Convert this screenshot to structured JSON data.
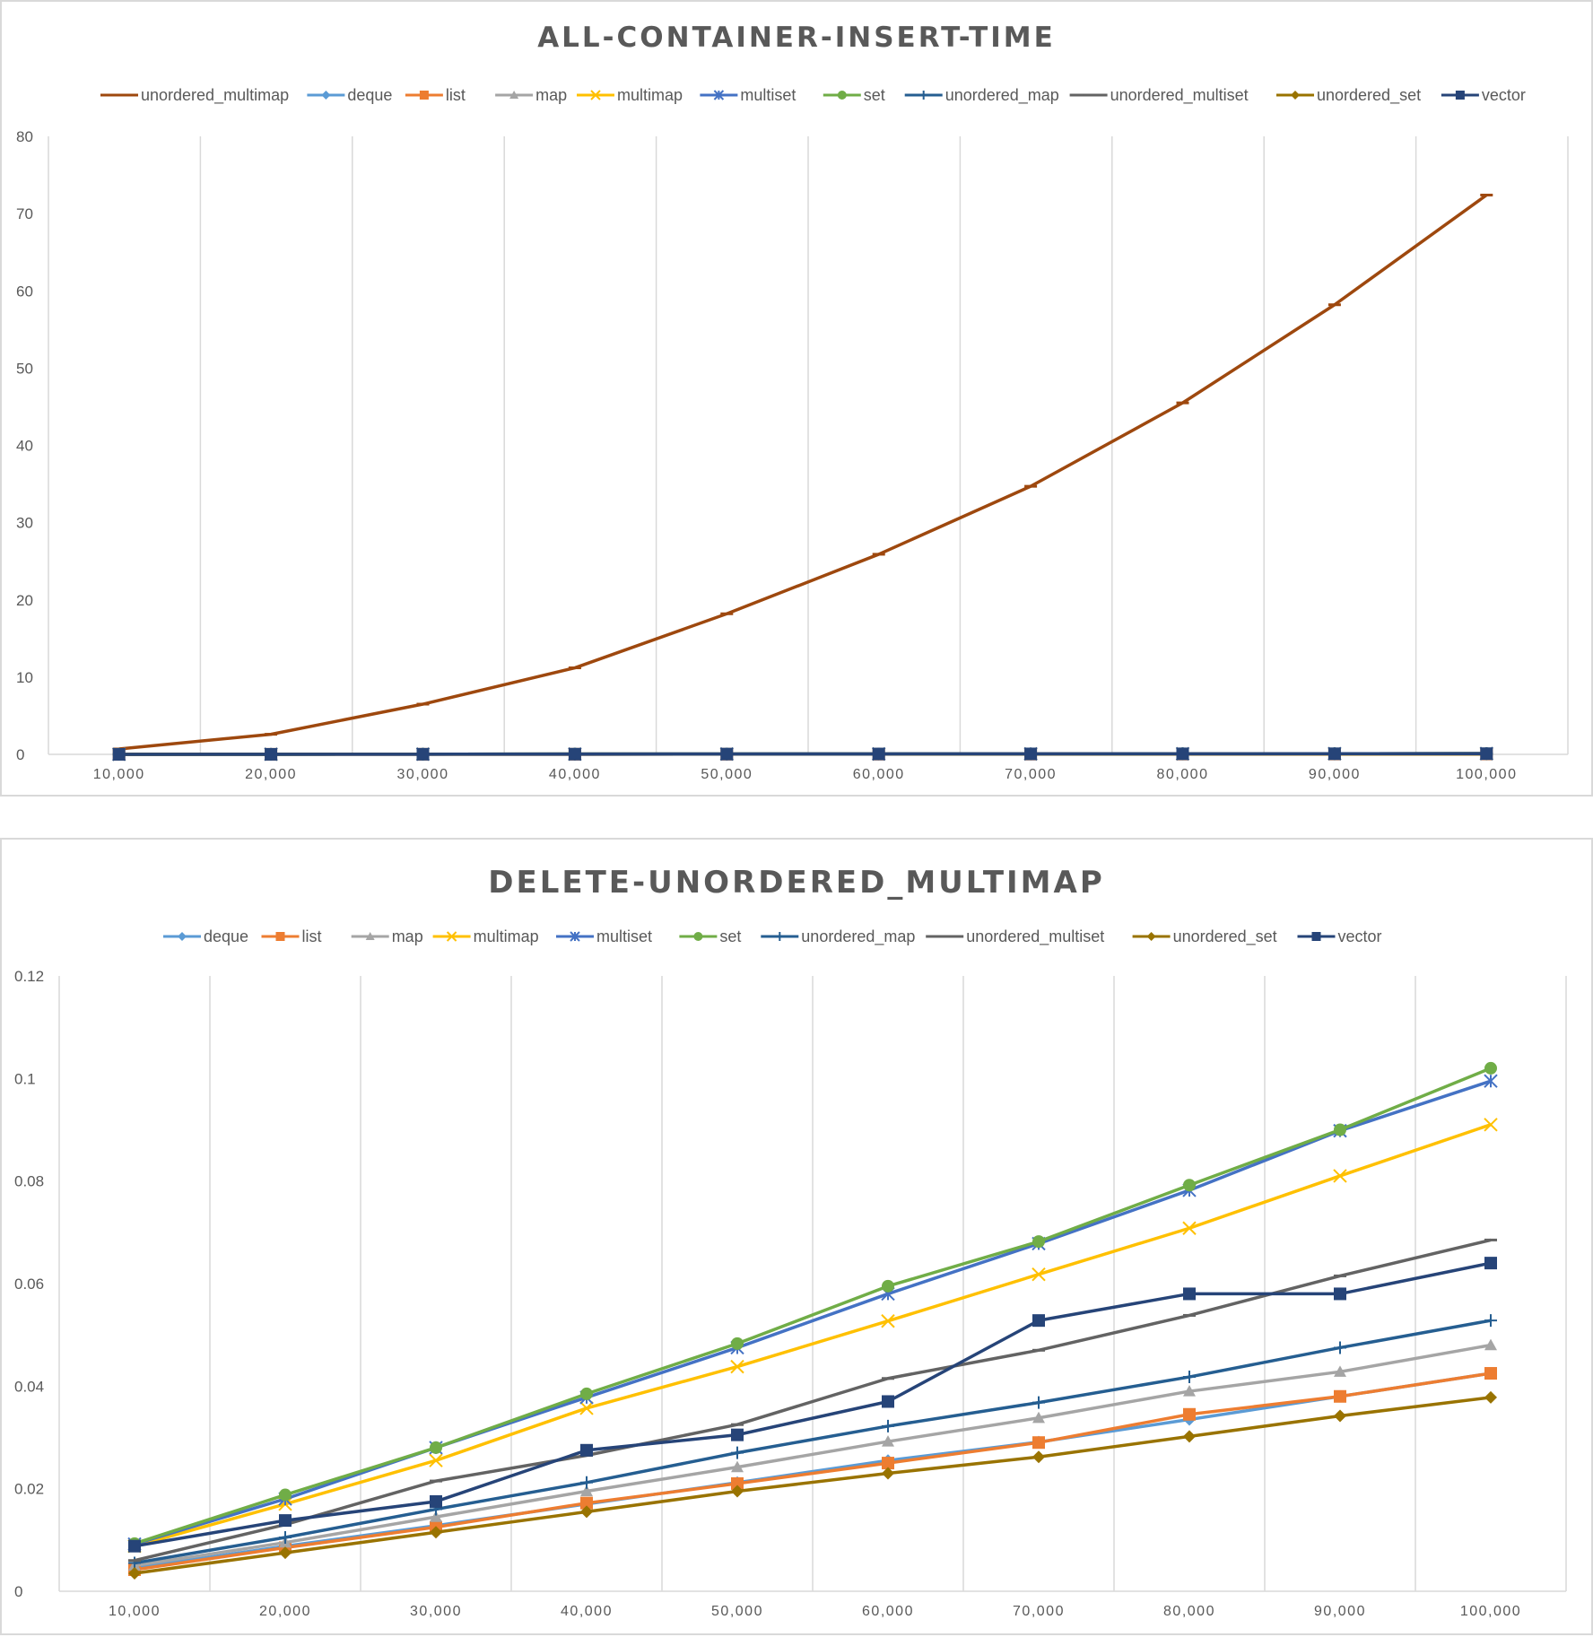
{
  "chart_data": [
    {
      "type": "line",
      "title": "ALL-CONTAINER-INSERT-TIME",
      "xlabel": "",
      "ylabel": "",
      "categories": [
        "10,000",
        "20,000",
        "30,000",
        "40,000",
        "50,000",
        "60,000",
        "70,000",
        "80,000",
        "90,000",
        "100,000"
      ],
      "ylim": [
        0,
        80
      ],
      "yticks": [
        "0",
        "10",
        "20",
        "30",
        "40",
        "50",
        "60",
        "70",
        "80"
      ],
      "grid": "vertical",
      "legend_position": "top",
      "series": [
        {
          "name": "unordered_multimap",
          "color": "#9e480e",
          "marker": "dash",
          "values": [
            0.7,
            2.6,
            6.5,
            11.2,
            18.2,
            25.9,
            34.7,
            45.5,
            58.2,
            72.4
          ]
        },
        {
          "name": "deque",
          "color": "#5b9bd5",
          "marker": "diamond",
          "values": [
            0.005,
            0.01,
            0.015,
            0.02,
            0.025,
            0.03,
            0.035,
            0.04,
            0.045,
            0.05
          ]
        },
        {
          "name": "list",
          "color": "#ed7d31",
          "marker": "square",
          "values": [
            0.005,
            0.01,
            0.015,
            0.02,
            0.025,
            0.03,
            0.035,
            0.04,
            0.045,
            0.05
          ]
        },
        {
          "name": "map",
          "color": "#a5a5a5",
          "marker": "triangle",
          "values": [
            0.01,
            0.02,
            0.03,
            0.04,
            0.05,
            0.06,
            0.07,
            0.08,
            0.09,
            0.1
          ]
        },
        {
          "name": "multimap",
          "color": "#ffc000",
          "marker": "x",
          "values": [
            0.01,
            0.02,
            0.03,
            0.04,
            0.05,
            0.06,
            0.07,
            0.08,
            0.09,
            0.1
          ]
        },
        {
          "name": "multiset",
          "color": "#4472c4",
          "marker": "star",
          "values": [
            0.01,
            0.02,
            0.03,
            0.04,
            0.05,
            0.06,
            0.07,
            0.08,
            0.09,
            0.1
          ]
        },
        {
          "name": "set",
          "color": "#70ad47",
          "marker": "circle",
          "values": [
            0.01,
            0.02,
            0.03,
            0.04,
            0.05,
            0.06,
            0.07,
            0.08,
            0.09,
            0.1
          ]
        },
        {
          "name": "unordered_map",
          "color": "#255e91",
          "marker": "plus",
          "values": [
            0.01,
            0.02,
            0.03,
            0.04,
            0.05,
            0.06,
            0.07,
            0.08,
            0.09,
            0.1
          ]
        },
        {
          "name": "unordered_multiset",
          "color": "#636363",
          "marker": "dash",
          "values": [
            0.01,
            0.02,
            0.03,
            0.04,
            0.05,
            0.06,
            0.07,
            0.08,
            0.09,
            0.1
          ]
        },
        {
          "name": "unordered_set",
          "color": "#997300",
          "marker": "diamond",
          "values": [
            0.005,
            0.01,
            0.015,
            0.02,
            0.025,
            0.03,
            0.035,
            0.04,
            0.045,
            0.05
          ]
        },
        {
          "name": "vector",
          "color": "#264478",
          "marker": "square",
          "values": [
            0.005,
            0.01,
            0.02,
            0.03,
            0.04,
            0.05,
            0.06,
            0.07,
            0.08,
            0.09
          ]
        }
      ]
    },
    {
      "type": "line",
      "title": "DELETE-UNORDERED_MULTIMAP",
      "xlabel": "",
      "ylabel": "",
      "categories": [
        "10,000",
        "20,000",
        "30,000",
        "40,000",
        "50,000",
        "60,000",
        "70,000",
        "80,000",
        "90,000",
        "100,000"
      ],
      "ylim": [
        0,
        0.12
      ],
      "yticks": [
        "0",
        "0.02",
        "0.04",
        "0.06",
        "0.08",
        "0.1",
        "0.12"
      ],
      "grid": "vertical",
      "legend_position": "top",
      "series": [
        {
          "name": "deque",
          "color": "#5b9bd5",
          "marker": "diamond",
          "values": [
            0.0045,
            0.0088,
            0.0128,
            0.017,
            0.0212,
            0.0255,
            0.0291,
            0.0335,
            0.038,
            0.0425
          ]
        },
        {
          "name": "list",
          "color": "#ed7d31",
          "marker": "square",
          "values": [
            0.0042,
            0.0085,
            0.0125,
            0.0172,
            0.021,
            0.025,
            0.029,
            0.0345,
            0.038,
            0.0425
          ]
        },
        {
          "name": "map",
          "color": "#a5a5a5",
          "marker": "triangle",
          "values": [
            0.005,
            0.0095,
            0.0145,
            0.0195,
            0.0242,
            0.0292,
            0.0338,
            0.039,
            0.0428,
            0.048
          ]
        },
        {
          "name": "multimap",
          "color": "#ffc000",
          "marker": "x",
          "values": [
            0.0088,
            0.017,
            0.0255,
            0.0357,
            0.0438,
            0.0527,
            0.0618,
            0.0708,
            0.081,
            0.091
          ]
        },
        {
          "name": "multiset",
          "color": "#4472c4",
          "marker": "star",
          "values": [
            0.0092,
            0.018,
            0.028,
            0.0378,
            0.0475,
            0.058,
            0.0678,
            0.0782,
            0.0898,
            0.0995
          ]
        },
        {
          "name": "set",
          "color": "#70ad47",
          "marker": "circle",
          "values": [
            0.0093,
            0.0188,
            0.028,
            0.0385,
            0.0483,
            0.0595,
            0.0682,
            0.0792,
            0.09,
            0.102
          ]
        },
        {
          "name": "unordered_map",
          "color": "#255e91",
          "marker": "plus",
          "values": [
            0.0055,
            0.0105,
            0.016,
            0.0212,
            0.027,
            0.0322,
            0.0368,
            0.0418,
            0.0475,
            0.0528
          ]
        },
        {
          "name": "unordered_multiset",
          "color": "#636363",
          "marker": "dash",
          "values": [
            0.006,
            0.013,
            0.0215,
            0.0265,
            0.0325,
            0.0415,
            0.047,
            0.0538,
            0.0615,
            0.0685
          ]
        },
        {
          "name": "unordered_set",
          "color": "#997300",
          "marker": "diamond",
          "values": [
            0.0035,
            0.0075,
            0.0115,
            0.0155,
            0.0195,
            0.023,
            0.0262,
            0.0302,
            0.0342,
            0.0378
          ]
        },
        {
          "name": "vector",
          "color": "#264478",
          "marker": "square",
          "values": [
            0.0088,
            0.0138,
            0.0175,
            0.0275,
            0.0305,
            0.037,
            0.0528,
            0.058,
            0.058,
            0.064
          ]
        }
      ]
    }
  ]
}
